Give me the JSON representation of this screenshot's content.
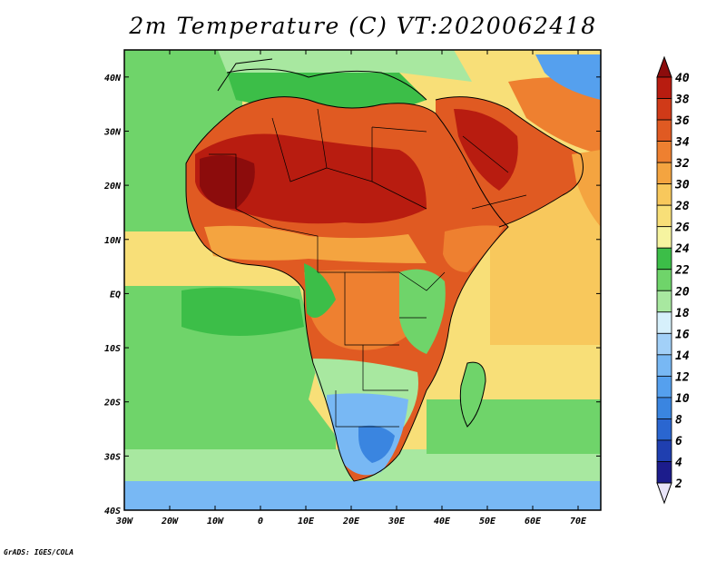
{
  "title": "2m Temperature (C) VT:2020062418",
  "credit": "GrADS: IGES/COLA",
  "map": {
    "lon_range": [
      -30,
      75
    ],
    "lat_range": [
      -40,
      45
    ],
    "lon_ticks": [
      "30W",
      "20W",
      "10W",
      "0",
      "10E",
      "20E",
      "30E",
      "40E",
      "50E",
      "60E",
      "70E"
    ],
    "lat_ticks": [
      "40S",
      "30S",
      "20S",
      "10S",
      "EQ",
      "10N",
      "20N",
      "30N",
      "40N"
    ]
  },
  "colorbar": {
    "labels": [
      "2",
      "4",
      "6",
      "8",
      "10",
      "12",
      "14",
      "16",
      "18",
      "20",
      "22",
      "24",
      "26",
      "28",
      "30",
      "32",
      "34",
      "36",
      "38",
      "40"
    ],
    "colors": [
      "#1c1c8c",
      "#1f3fb0",
      "#2a66d0",
      "#3a85e0",
      "#55a0ee",
      "#78b8f4",
      "#a2d0f8",
      "#d6f0fb",
      "#a8e8a0",
      "#6fd46a",
      "#3cbe48",
      "#f6f4a0",
      "#f8df78",
      "#f8c85c",
      "#f4a440",
      "#ee8030",
      "#e05a22",
      "#d03a18",
      "#b81c10",
      "#8c0c0c"
    ],
    "under_color": "#e8e4f8",
    "over_color": "#8c0c0c"
  }
}
